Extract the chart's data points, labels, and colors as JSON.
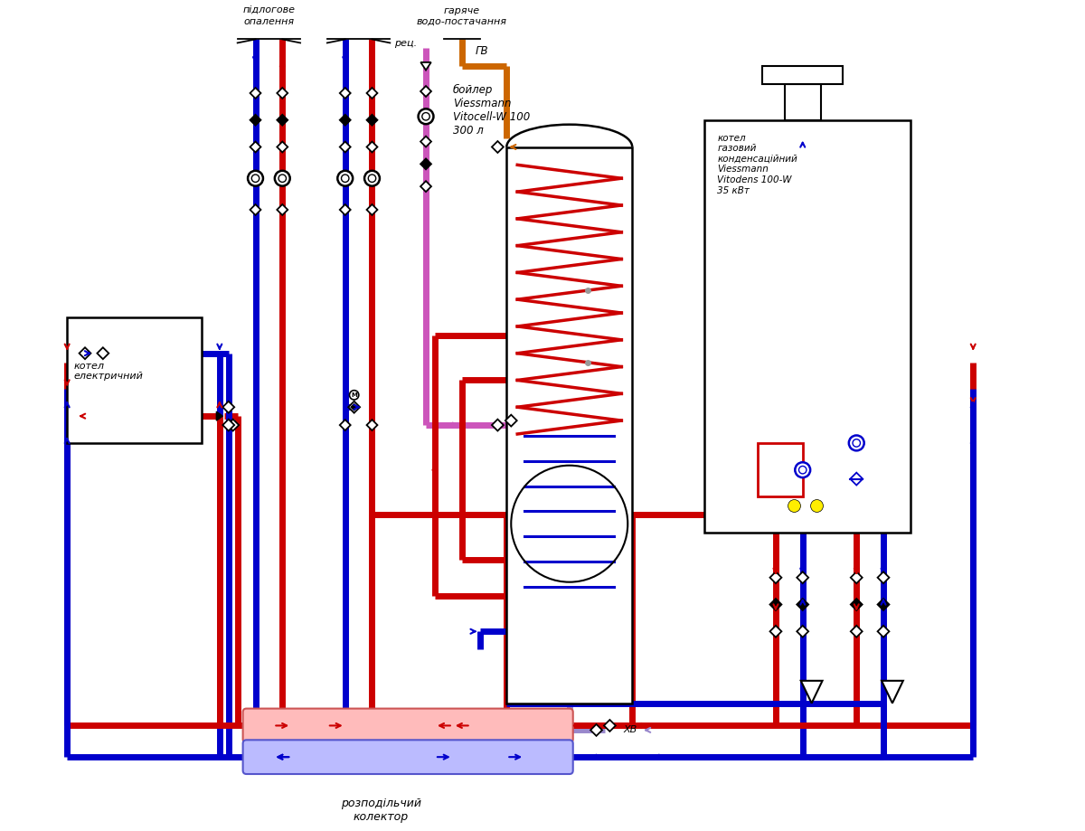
{
  "bg": "#ffffff",
  "R": "#cc0000",
  "B": "#0000cc",
  "P": "#cc55bb",
  "OR": "#cc6600",
  "BK": "#000000",
  "GR": "#999999",
  "YL": "#ffee00",
  "LV": "#9988cc",
  "LW": 5,
  "texts": {
    "floor": "підлогове\nопалення",
    "hotw": "гаряче\nводо-постачання",
    "rec": "рец.",
    "gv": "ГВ",
    "boiler": "бойлер\nViessmann\nVitocell-W 100\n300 л",
    "gasb": "котел\nгазовий\nконденсаційний\nViessmann\nVitodens 100-W\n35 кВт",
    "elecb": "котел\nелектричний",
    "coll": "розподільчий\nколектор",
    "xv": "ХВ"
  }
}
